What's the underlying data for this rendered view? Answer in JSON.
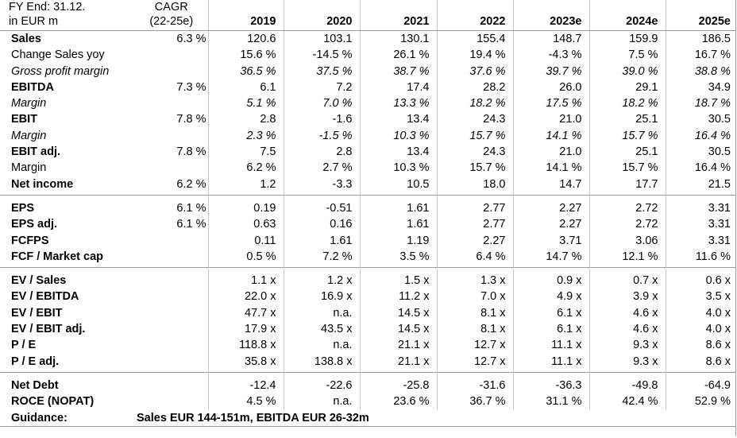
{
  "header": {
    "label_line1": "FY End: 31.12.",
    "label_line2": "in EUR m",
    "cagr_line1": "CAGR",
    "cagr_line2": "(22-25e)",
    "years": [
      "2019",
      "2020",
      "2021",
      "2022",
      "2023e",
      "2024e",
      "2025e"
    ]
  },
  "rows": [
    {
      "label": "Sales",
      "cagr": "6.3 %",
      "values": [
        "120.6",
        "103.1",
        "130.1",
        "155.4",
        "148.7",
        "159.9",
        "186.5"
      ]
    },
    {
      "label": "Change Sales yoy",
      "cagr": "",
      "values": [
        "15.6 %",
        "-14.5 %",
        "26.1 %",
        "19.4 %",
        "-4.3 %",
        "7.5 %",
        "16.7 %"
      ]
    },
    {
      "label": "Gross profit margin",
      "cagr": "",
      "values": [
        "36.5 %",
        "37.5 %",
        "38.7 %",
        "37.6 %",
        "39.7 %",
        "39.0 %",
        "38.8 %"
      ]
    },
    {
      "label": "EBITDA",
      "cagr": "7.3 %",
      "values": [
        "6.1",
        "7.2",
        "17.4",
        "28.2",
        "26.0",
        "29.1",
        "34.9"
      ]
    },
    {
      "label": "Margin",
      "cagr": "",
      "values": [
        "5.1 %",
        "7.0 %",
        "13.3 %",
        "18.2 %",
        "17.5 %",
        "18.2 %",
        "18.7 %"
      ]
    },
    {
      "label": "EBIT",
      "cagr": "7.8 %",
      "values": [
        "2.8",
        "-1.6",
        "13.4",
        "24.3",
        "21.0",
        "25.1",
        "30.5"
      ]
    },
    {
      "label": "Margin",
      "cagr": "",
      "values": [
        "2.3 %",
        "-1.5 %",
        "10.3 %",
        "15.7 %",
        "14.1 %",
        "15.7 %",
        "16.4 %"
      ]
    },
    {
      "label": "EBIT adj.",
      "cagr": "7.8 %",
      "values": [
        "7.5",
        "2.8",
        "13.4",
        "24.3",
        "21.0",
        "25.1",
        "30.5"
      ]
    },
    {
      "label": "Margin",
      "cagr": "",
      "values": [
        "6.2 %",
        "2.7 %",
        "10.3 %",
        "15.7 %",
        "14.1 %",
        "15.7 %",
        "16.4 %"
      ]
    },
    {
      "label": "Net income",
      "cagr": "6.2 %",
      "values": [
        "1.2",
        "-3.3",
        "10.5",
        "18.0",
        "14.7",
        "17.7",
        "21.5"
      ]
    },
    {
      "label": "EPS",
      "cagr": "6.1 %",
      "values": [
        "0.19",
        "-0.51",
        "1.61",
        "2.77",
        "2.27",
        "2.72",
        "3.31"
      ]
    },
    {
      "label": "EPS adj.",
      "cagr": "6.1 %",
      "values": [
        "0.63",
        "0.16",
        "1.61",
        "2.77",
        "2.27",
        "2.72",
        "3.31"
      ]
    },
    {
      "label": "FCFPS",
      "cagr": "",
      "values": [
        "0.11",
        "1.61",
        "1.19",
        "2.27",
        "3.71",
        "3.06",
        "3.31"
      ]
    },
    {
      "label": "FCF / Market cap",
      "cagr": "",
      "values": [
        "0.5 %",
        "7.2 %",
        "3.5 %",
        "6.4 %",
        "14.7 %",
        "12.1 %",
        "11.6 %"
      ]
    },
    {
      "label": "EV / Sales",
      "cagr": "",
      "values": [
        "1.1 x",
        "1.2 x",
        "1.5 x",
        "1.3 x",
        "0.9 x",
        "0.7 x",
        "0.6 x"
      ]
    },
    {
      "label": "EV / EBITDA",
      "cagr": "",
      "values": [
        "22.0 x",
        "16.9 x",
        "11.2 x",
        "7.0 x",
        "4.9 x",
        "3.9 x",
        "3.5 x"
      ]
    },
    {
      "label": "EV / EBIT",
      "cagr": "",
      "values": [
        "47.7 x",
        "n.a.",
        "14.5 x",
        "8.1 x",
        "6.1 x",
        "4.6 x",
        "4.0 x"
      ]
    },
    {
      "label": "EV / EBIT adj.",
      "cagr": "",
      "values": [
        "17.9 x",
        "43.5 x",
        "14.5 x",
        "8.1 x",
        "6.1 x",
        "4.6 x",
        "4.0 x"
      ]
    },
    {
      "label": "P / E",
      "cagr": "",
      "values": [
        "118.8 x",
        "n.a.",
        "21.1 x",
        "12.7 x",
        "11.1 x",
        "9.3 x",
        "8.6 x"
      ]
    },
    {
      "label": "P / E adj.",
      "cagr": "",
      "values": [
        "35.8 x",
        "138.8 x",
        "21.1 x",
        "12.7 x",
        "11.1 x",
        "9.3 x",
        "8.6 x"
      ]
    },
    {
      "label": "Net Debt",
      "cagr": "",
      "values": [
        "-12.4",
        "-22.6",
        "-25.8",
        "-31.6",
        "-36.3",
        "-49.8",
        "-64.9"
      ]
    },
    {
      "label": "ROCE (NOPAT)",
      "cagr": "",
      "values": [
        "4.5 %",
        "n.a.",
        "23.6 %",
        "36.7 %",
        "31.1 %",
        "42.4 %",
        "52.9 %"
      ]
    }
  ],
  "guidance": {
    "label": "Guidance:",
    "text": "Sales EUR 144-151m, EBITDA EUR 26-32m"
  }
}
